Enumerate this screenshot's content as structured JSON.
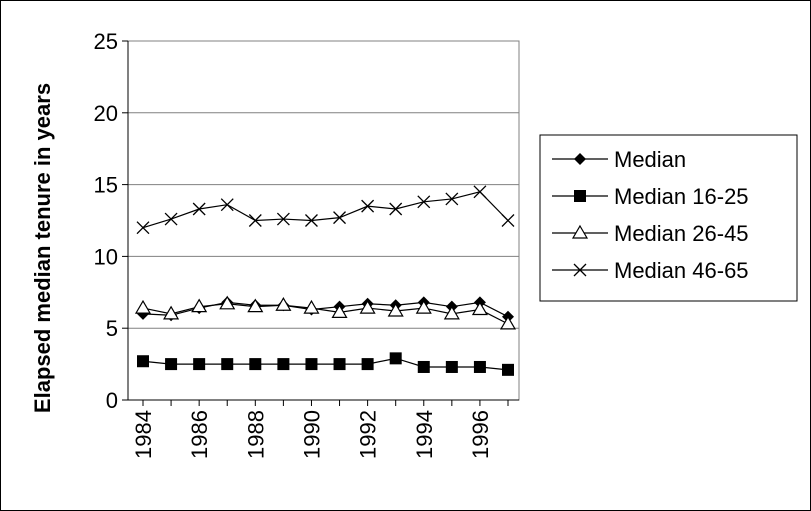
{
  "chart_data": {
    "type": "line",
    "ylabel": "Elapsed median tenure in years",
    "xlabel": "",
    "ylim": [
      0,
      25
    ],
    "y_ticks": [
      0,
      5,
      10,
      15,
      20,
      25
    ],
    "x": [
      1984,
      1985,
      1986,
      1987,
      1988,
      1989,
      1990,
      1991,
      1992,
      1993,
      1994,
      1995,
      1996,
      1997
    ],
    "x_tick_labels": [
      "1984",
      "1986",
      "1988",
      "1990",
      "1992",
      "1994",
      "1996"
    ],
    "grid": "horizontal",
    "legend_position": "right",
    "series": [
      {
        "name": "Median",
        "marker": "diamond-filled",
        "values": [
          6.0,
          5.9,
          6.4,
          6.8,
          6.6,
          6.6,
          6.3,
          6.5,
          6.7,
          6.6,
          6.8,
          6.5,
          6.8,
          5.8
        ]
      },
      {
        "name": "Median 16-25",
        "marker": "square-filled",
        "values": [
          2.7,
          2.5,
          2.5,
          2.5,
          2.5,
          2.5,
          2.5,
          2.5,
          2.5,
          2.9,
          2.3,
          2.3,
          2.3,
          2.1
        ]
      },
      {
        "name": "Median 26-45",
        "marker": "triangle-open",
        "values": [
          6.4,
          6.0,
          6.5,
          6.7,
          6.5,
          6.6,
          6.4,
          6.1,
          6.4,
          6.2,
          6.4,
          6.0,
          6.3,
          5.3
        ]
      },
      {
        "name": "Median 46-65",
        "marker": "x",
        "values": [
          12.0,
          12.6,
          13.3,
          13.6,
          12.5,
          12.6,
          12.5,
          12.7,
          13.5,
          13.3,
          13.8,
          14.0,
          14.5,
          12.5
        ]
      }
    ]
  }
}
